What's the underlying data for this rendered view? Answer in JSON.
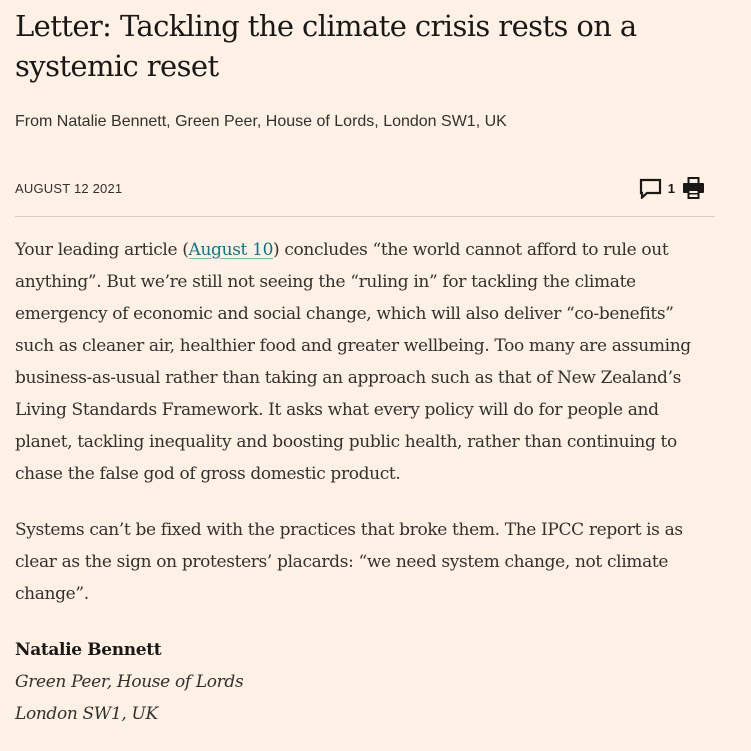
{
  "article": {
    "headline": "Letter: Tackling the climate crisis rests on a systemic reset",
    "standfirst": "From Natalie Bennett, Green Peer, House of Lords, London SW1, UK",
    "date": "AUGUST 12 2021",
    "comment_count": "1",
    "icons": {
      "comment": "comment-icon",
      "print": "print-icon"
    },
    "paragraph1": {
      "before_link": "Your leading article (",
      "link_text": "August 10",
      "after_link": ") concludes “the world cannot afford to rule out anything”. But we’re still not seeing the “ruling in” for tackling the climate emergency of economic and social change, which will also deliver “co-benefits” such as cleaner air, healthier food and greater wellbeing. Too many are assuming business-as-usual rather than taking an approach such as that of New Zealand’s Living Standards Framework. It asks what every policy will do for people and planet, tackling inequality and boosting public health, rather than continuing to chase the false god of gross domestic product."
    },
    "paragraph2": "Systems can’t be fixed with the practices that broke them. The IPCC report is as clear as the sign on protesters’ placards: “we need system change, not climate change”.",
    "signature": {
      "name": "Natalie Bennett",
      "title": "Green Peer, House of Lords",
      "location": "London SW1, UK"
    }
  },
  "colors": {
    "background": "#fff1e5",
    "text": "#33302e",
    "link": "#0d7680"
  }
}
